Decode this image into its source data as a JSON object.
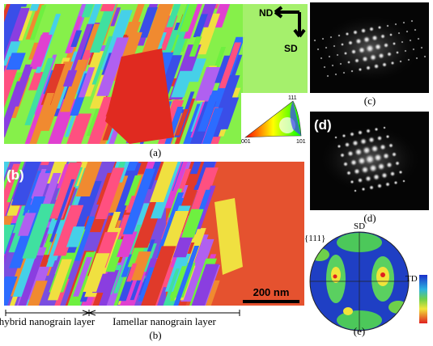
{
  "panels": {
    "a": {
      "orientation_axes": {
        "nd": "ND",
        "sd": "SD"
      },
      "ipf_key": {
        "top": "111",
        "left": "001",
        "right": "101"
      },
      "caption": "(a)"
    },
    "b": {
      "label": "(b)",
      "scale_bar": "200 nm",
      "layers": {
        "hybrid": "hybrid nanograin layer",
        "lamellar": "Iamellar nanograin layer"
      },
      "caption": "(b)"
    },
    "c": {
      "caption": "(c)"
    },
    "d": {
      "label": "(d)",
      "caption": "(d)"
    },
    "e": {
      "pole": "{111}",
      "sd": "SD",
      "td": "TD",
      "caption": "(e)"
    }
  }
}
